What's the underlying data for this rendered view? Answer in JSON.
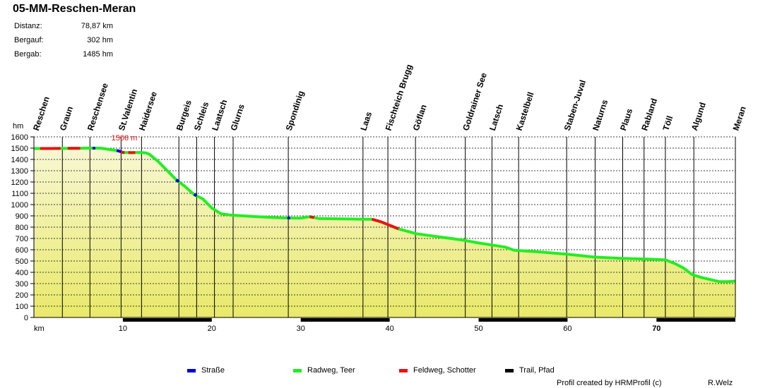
{
  "title": "05-MM-Reschen-Meran",
  "stats": [
    {
      "label": "Distanz:",
      "value": "78,87 km"
    },
    {
      "label": "Bergauf:",
      "value": "302 hm"
    },
    {
      "label": "Bergab:",
      "value": "1485 hm"
    }
  ],
  "legend": [
    {
      "label": "Straße",
      "color": "#0000dd"
    },
    {
      "label": "Radweg, Teer",
      "color": "#22ee22"
    },
    {
      "label": "Feldweg, Schotter",
      "color": "#ee1111"
    },
    {
      "label": "Trail, Pfad",
      "color": "#000000"
    }
  ],
  "credit": "Profil created by HRMProfil (c)",
  "author": "R.Welz",
  "chart_data": {
    "type": "area",
    "ylabel": "hm",
    "xlabel": "km",
    "xlim": [
      0,
      78.87
    ],
    "ylim": [
      0,
      1600
    ],
    "y_ticks": [
      0,
      100,
      200,
      300,
      400,
      500,
      600,
      700,
      800,
      900,
      1000,
      1100,
      1200,
      1300,
      1400,
      1500,
      1600
    ],
    "x_ticks": [
      {
        "value": 0,
        "label": "km"
      },
      {
        "value": 10,
        "label": "10"
      },
      {
        "value": 20,
        "label": "20"
      },
      {
        "value": 30,
        "label": "30"
      },
      {
        "value": 40,
        "label": "40"
      },
      {
        "value": 50,
        "label": "50"
      },
      {
        "value": 60,
        "label": "60"
      },
      {
        "value": 70,
        "label": "70"
      }
    ],
    "grid": true,
    "max_annotation": {
      "km": 9.5,
      "elevation": 1506,
      "label": "1506 m"
    },
    "fill_color_top": "#f7f7d2",
    "fill_color_bottom": "#e9e96a",
    "profile": [
      [
        0,
        1497
      ],
      [
        2,
        1497
      ],
      [
        4,
        1498
      ],
      [
        6,
        1500
      ],
      [
        7.5,
        1500
      ],
      [
        8.5,
        1488
      ],
      [
        9.5,
        1476
      ],
      [
        10,
        1462
      ],
      [
        11,
        1460
      ],
      [
        12,
        1462
      ],
      [
        12.6,
        1458
      ],
      [
        13,
        1445
      ],
      [
        14,
        1380
      ],
      [
        15,
        1300
      ],
      [
        16,
        1220
      ],
      [
        17,
        1160
      ],
      [
        18,
        1090
      ],
      [
        19,
        1050
      ],
      [
        20,
        970
      ],
      [
        21,
        920
      ],
      [
        22,
        908
      ],
      [
        25,
        893
      ],
      [
        28,
        882
      ],
      [
        30,
        880
      ],
      [
        31,
        893
      ],
      [
        32,
        877
      ],
      [
        36,
        872
      ],
      [
        38,
        870
      ],
      [
        39,
        848
      ],
      [
        41,
        785
      ],
      [
        43,
        742
      ],
      [
        45,
        720
      ],
      [
        48,
        688
      ],
      [
        50,
        660
      ],
      [
        53,
        623
      ],
      [
        54,
        595
      ],
      [
        57,
        580
      ],
      [
        60,
        560
      ],
      [
        63,
        535
      ],
      [
        66,
        524
      ],
      [
        69,
        517
      ],
      [
        71,
        510
      ],
      [
        72,
        480
      ],
      [
        73,
        440
      ],
      [
        74,
        380
      ],
      [
        75,
        355
      ],
      [
        77,
        318
      ],
      [
        78,
        317
      ],
      [
        78.87,
        322
      ]
    ],
    "surface_segments": [
      {
        "type": "gravel",
        "from": 0.7,
        "to": 3.0
      },
      {
        "type": "gravel",
        "from": 3.8,
        "to": 5.2
      },
      {
        "type": "road",
        "from": 6.6,
        "to": 6.9
      },
      {
        "type": "road",
        "from": 9.3,
        "to": 9.8
      },
      {
        "type": "gravel",
        "from": 9.8,
        "to": 10.2
      },
      {
        "type": "gravel",
        "from": 10.6,
        "to": 11.4
      },
      {
        "type": "gravel",
        "from": 38.0,
        "to": 41.0
      },
      {
        "type": "gravel",
        "from": 31.0,
        "to": 31.5
      },
      {
        "type": "road",
        "from": 28.5,
        "to": 28.8
      },
      {
        "type": "road",
        "from": 16.0,
        "to": 16.3
      },
      {
        "type": "road",
        "from": 18.0,
        "to": 18.3
      }
    ],
    "bottom_bar": [
      {
        "from": 10,
        "to": 20
      },
      {
        "from": 30,
        "to": 40
      },
      {
        "from": 50,
        "to": 60
      },
      {
        "from": 70,
        "to": 78.87
      }
    ],
    "places": [
      {
        "name": "Reschen",
        "km": 0.2,
        "line": false
      },
      {
        "name": "Graun",
        "km": 3.2,
        "line": true
      },
      {
        "name": "Reschensee",
        "km": 6.3,
        "line": true
      },
      {
        "name": "St.Valentin",
        "km": 9.8,
        "line": true
      },
      {
        "name": "Haidersee",
        "km": 12.1,
        "line": true
      },
      {
        "name": "Burgeis",
        "km": 16.3,
        "line": true
      },
      {
        "name": "Schleis",
        "km": 18.3,
        "line": true
      },
      {
        "name": "Laatsch",
        "km": 20.3,
        "line": true
      },
      {
        "name": "Glurns",
        "km": 22.4,
        "line": true
      },
      {
        "name": "Spondinig",
        "km": 28.6,
        "line": true
      },
      {
        "name": "Laas",
        "km": 37.0,
        "line": true
      },
      {
        "name": "Fischteich Brugg",
        "km": 39.8,
        "line": true
      },
      {
        "name": "Göflan",
        "km": 42.9,
        "line": true
      },
      {
        "name": "Goldrainer See",
        "km": 48.5,
        "line": true
      },
      {
        "name": "Latsch",
        "km": 51.5,
        "line": true
      },
      {
        "name": "Kastelbell",
        "km": 54.5,
        "line": true
      },
      {
        "name": "Staben-Juval",
        "km": 59.9,
        "line": true
      },
      {
        "name": "Naturns",
        "km": 63.1,
        "line": true
      },
      {
        "name": "Plaus",
        "km": 66.2,
        "line": true
      },
      {
        "name": "Rabland",
        "km": 68.6,
        "line": true
      },
      {
        "name": "Töll",
        "km": 71.0,
        "line": true
      },
      {
        "name": "Algund",
        "km": 74.2,
        "line": true
      },
      {
        "name": "Meran",
        "km": 78.87,
        "line": true
      }
    ]
  }
}
